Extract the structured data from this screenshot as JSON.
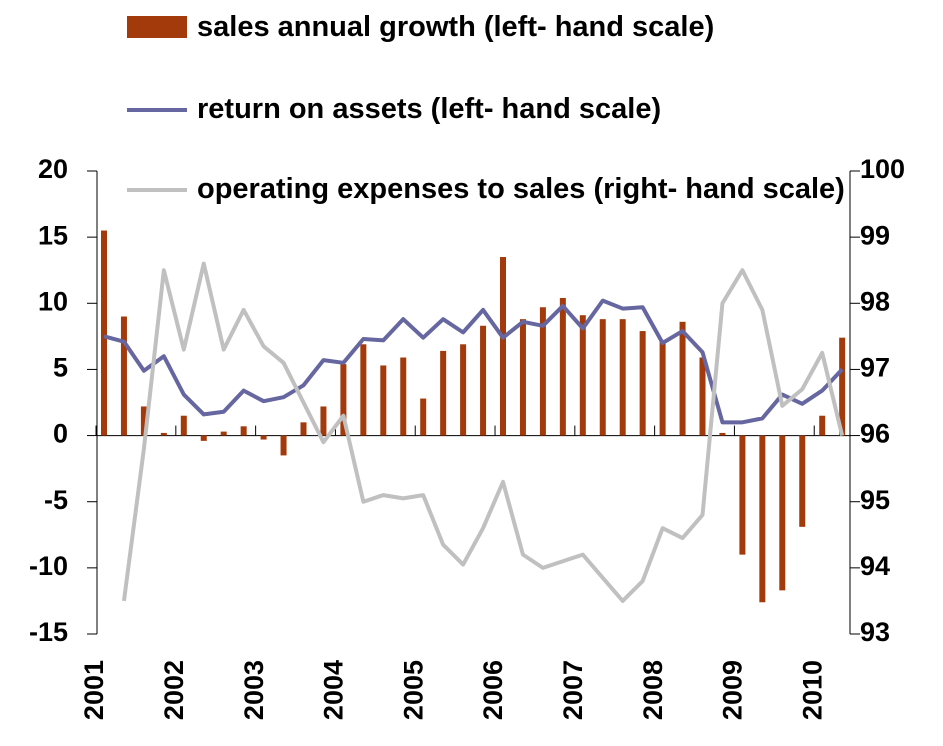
{
  "chart_data": {
    "type": "bar-line",
    "categories": [
      "2001",
      null,
      null,
      null,
      "2002",
      null,
      null,
      null,
      "2003",
      null,
      null,
      null,
      "2004",
      null,
      null,
      null,
      "2005",
      null,
      null,
      null,
      "2006",
      null,
      null,
      null,
      "2007",
      null,
      null,
      null,
      "2008",
      null,
      null,
      null,
      "2009",
      null,
      null,
      null,
      "2010",
      null
    ],
    "series": [
      {
        "name": "sales annual growth (left- hand scale)",
        "type": "bar",
        "color": "#a33a0c",
        "values": [
          15.5,
          9.0,
          2.2,
          0.2,
          1.5,
          -0.4,
          0.3,
          0.7,
          -0.3,
          -1.5,
          1.0,
          2.2,
          5.4,
          6.9,
          5.3,
          5.9,
          2.8,
          6.4,
          6.9,
          8.3,
          13.5,
          8.8,
          9.7,
          10.4,
          9.1,
          8.8,
          8.8,
          7.9,
          7.2,
          8.6,
          5.9,
          0.2,
          -9.0,
          -12.6,
          -11.7,
          -6.9,
          1.5,
          7.4
        ]
      },
      {
        "name": "return on assets (left- hand scale)",
        "type": "line",
        "color": "#6666a0",
        "values": [
          7.5,
          7.1,
          4.9,
          6.0,
          3.1,
          1.6,
          1.8,
          3.4,
          2.6,
          2.9,
          3.8,
          5.7,
          5.5,
          7.3,
          7.2,
          8.8,
          7.4,
          8.8,
          7.8,
          9.5,
          7.4,
          8.6,
          8.3,
          9.8,
          8.1,
          10.2,
          9.6,
          9.7,
          7.0,
          7.9,
          6.3,
          1.0,
          1.0,
          1.3,
          3.1,
          2.4,
          3.4,
          5.0
        ]
      },
      {
        "name": "operating expenses to sales (right- hand scale)",
        "type": "line",
        "axis": "y2",
        "color": "#c0c0c0",
        "values": [
          null,
          93.5,
          95.8,
          98.5,
          97.3,
          98.6,
          97.3,
          97.9,
          97.35,
          97.1,
          96.5,
          95.9,
          96.3,
          95.0,
          95.1,
          95.05,
          95.1,
          94.35,
          94.05,
          94.6,
          95.3,
          94.2,
          94.0,
          94.1,
          94.2,
          93.85,
          93.5,
          93.8,
          94.6,
          94.45,
          94.8,
          98.0,
          98.5,
          97.9,
          96.45,
          96.7,
          97.25,
          96.0
        ]
      }
    ],
    "ylim": [
      -15,
      20
    ],
    "yticks": [
      -15,
      -10,
      -5,
      0,
      5,
      10,
      15,
      20
    ],
    "y2lim": [
      93,
      100
    ],
    "y2ticks": [
      93,
      94,
      95,
      96,
      97,
      98,
      99,
      100
    ]
  }
}
